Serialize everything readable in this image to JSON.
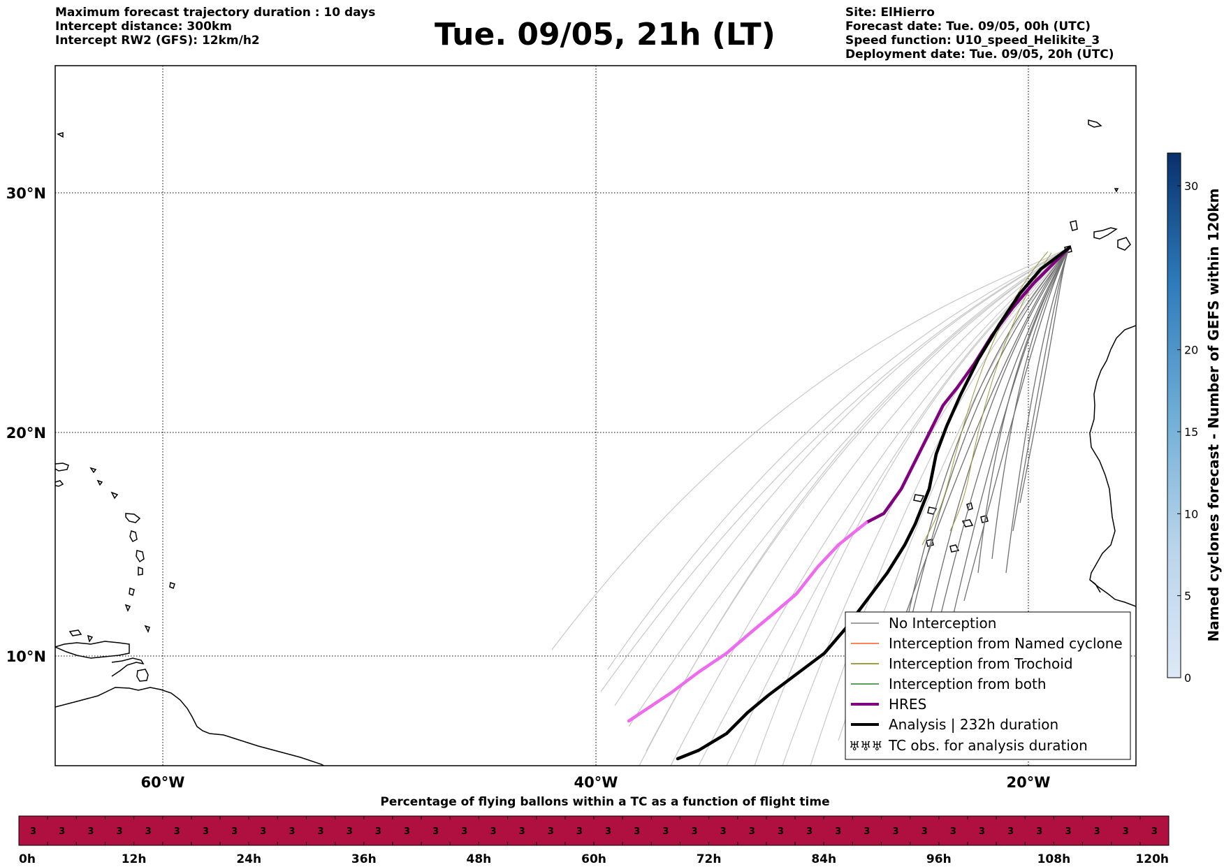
{
  "header": {
    "left": [
      "Maximum forecast trajectory duration : 10 days",
      "Intercept distance: 300km",
      "Intercept RW2 (GFS):  12km/h2"
    ],
    "title": "Tue. 09/05, 21h (LT)",
    "right": [
      "Site: ElHierro",
      "Forecast date: Tue. 09/05, 00h (UTC)",
      "Speed function: U10_speed_Helikite_3",
      "Deployment date: Tue. 09/05, 20h (UTC)"
    ]
  },
  "map": {
    "lon_range": [
      -65,
      -15
    ],
    "lat_range": [
      4.6,
      34
    ],
    "lat_ticks": [
      {
        "lat": 30,
        "label": "30°N"
      },
      {
        "lat": 20,
        "label": "20°N"
      },
      {
        "lat": 10,
        "label": "10°N"
      }
    ],
    "lon_ticks": [
      {
        "lon": -60,
        "label": "60°W"
      },
      {
        "lon": -40,
        "label": "40°W"
      },
      {
        "lon": -20,
        "label": "20°W"
      }
    ],
    "colors": {
      "gefs": "#707070",
      "gefs_light": "#c8c8c8",
      "trochoid": "#9a9a40",
      "hres": "#800080",
      "hres_light": "#ee6aee",
      "analysis": "#000000"
    }
  },
  "legend": {
    "items": [
      {
        "label": "No Interception",
        "color": "#808080"
      },
      {
        "label": "Interception from Named cyclone",
        "color": "#ff5a1f"
      },
      {
        "label": "Interception from Trochoid",
        "color": "#808000"
      },
      {
        "label": "Interception from both",
        "color": "#208020"
      },
      {
        "label": "HRES",
        "color": "#800080"
      },
      {
        "label": "Analysis | 232h duration",
        "color": "#000000"
      },
      {
        "label": "TC obs. for analysis duration",
        "symbol": "♅♅♅"
      }
    ]
  },
  "colorbar": {
    "label": "Named cyclones forecast - Number of GEFS within 120km",
    "ticks": [
      0,
      5,
      10,
      15,
      20,
      30
    ],
    "range": [
      0,
      32
    ]
  },
  "timeline": {
    "title": "Percentage of flying ballons within a TC as a function of flight time",
    "cell_count": 40,
    "cell_value": "3",
    "color": "#b01040",
    "ticks": [
      "0h",
      "12h",
      "24h",
      "36h",
      "48h",
      "60h",
      "72h",
      "84h",
      "96h",
      "108h",
      "120h"
    ]
  }
}
